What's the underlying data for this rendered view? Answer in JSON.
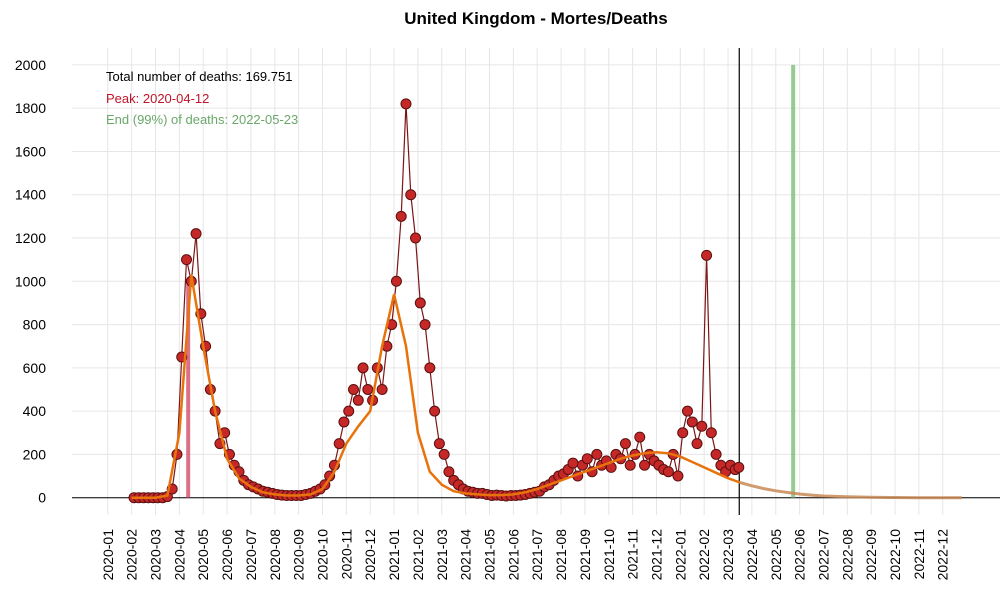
{
  "chart_data": {
    "type": "scatter-fit",
    "title": "United Kingdom - Mortes/Deaths",
    "annotations": {
      "total": "Total number of deaths: 169.751",
      "peak": "Peak: 2020-04-12",
      "end": "End (99%) of deaths: 2022-05-23"
    },
    "peak_line_x": 3.37,
    "end_line_x": 28.73,
    "current_line_x": 26.47,
    "xlim": [
      -1.5,
      37.4
    ],
    "ylim": [
      -80,
      2078
    ],
    "yticks": [
      0,
      200,
      400,
      600,
      800,
      1000,
      1200,
      1400,
      1600,
      1800,
      2000
    ],
    "xticks": [
      {
        "value": 0,
        "label": "2020-01"
      },
      {
        "value": 1,
        "label": "2020-02"
      },
      {
        "value": 2,
        "label": "2020-03"
      },
      {
        "value": 3,
        "label": "2020-04"
      },
      {
        "value": 4,
        "label": "2020-05"
      },
      {
        "value": 5,
        "label": "2020-06"
      },
      {
        "value": 6,
        "label": "2020-07"
      },
      {
        "value": 7,
        "label": "2020-08"
      },
      {
        "value": 8,
        "label": "2020-09"
      },
      {
        "value": 9,
        "label": "2020-10"
      },
      {
        "value": 10,
        "label": "2020-11"
      },
      {
        "value": 11,
        "label": "2020-12"
      },
      {
        "value": 12,
        "label": "2021-01"
      },
      {
        "value": 13,
        "label": "2021-02"
      },
      {
        "value": 14,
        "label": "2021-03"
      },
      {
        "value": 15,
        "label": "2021-04"
      },
      {
        "value": 16,
        "label": "2021-05"
      },
      {
        "value": 17,
        "label": "2021-06"
      },
      {
        "value": 18,
        "label": "2021-07"
      },
      {
        "value": 19,
        "label": "2021-08"
      },
      {
        "value": 20,
        "label": "2021-09"
      },
      {
        "value": 21,
        "label": "2021-10"
      },
      {
        "value": 22,
        "label": "2021-11"
      },
      {
        "value": 23,
        "label": "2021-12"
      },
      {
        "value": 24,
        "label": "2022-01"
      },
      {
        "value": 25,
        "label": "2022-02"
      },
      {
        "value": 26,
        "label": "2022-03"
      },
      {
        "value": 27,
        "label": "2022-04"
      },
      {
        "value": 28,
        "label": "2022-05"
      },
      {
        "value": 29,
        "label": "2022-06"
      },
      {
        "value": 30,
        "label": "2022-07"
      },
      {
        "value": 31,
        "label": "2022-08"
      },
      {
        "value": 32,
        "label": "2022-09"
      },
      {
        "value": 33,
        "label": "2022-10"
      },
      {
        "value": 34,
        "label": "2022-11"
      },
      {
        "value": 35,
        "label": "2022-12"
      }
    ],
    "grid": true,
    "deaths": {
      "color": "#c62828",
      "line_color": "#7a1616",
      "x": [
        1.1,
        1.3,
        1.5,
        1.7,
        1.9,
        2.1,
        2.3,
        2.5,
        2.7,
        2.9,
        3.1,
        3.3,
        3.5,
        3.7,
        3.9,
        4.1,
        4.3,
        4.5,
        4.7,
        4.9,
        5.1,
        5.3,
        5.5,
        5.7,
        5.9,
        6.1,
        6.3,
        6.5,
        6.7,
        6.9,
        7.1,
        7.3,
        7.5,
        7.7,
        7.9,
        8.1,
        8.3,
        8.5,
        8.7,
        8.9,
        9.1,
        9.3,
        9.5,
        9.7,
        9.9,
        10.1,
        10.3,
        10.5,
        10.7,
        10.9,
        11.1,
        11.3,
        11.5,
        11.7,
        11.9,
        12.1,
        12.3,
        12.5,
        12.7,
        12.9,
        13.1,
        13.3,
        13.5,
        13.7,
        13.9,
        14.1,
        14.3,
        14.5,
        14.7,
        14.9,
        15.1,
        15.3,
        15.5,
        15.7,
        15.9,
        16.1,
        16.3,
        16.5,
        16.7,
        16.9,
        17.1,
        17.3,
        17.5,
        17.7,
        17.9,
        18.1,
        18.3,
        18.5,
        18.7,
        18.9,
        19.1,
        19.3,
        19.5,
        19.7,
        19.9,
        20.1,
        20.3,
        20.5,
        20.7,
        20.9,
        21.1,
        21.3,
        21.5,
        21.7,
        21.9,
        22.1,
        22.3,
        22.5,
        22.7,
        22.9,
        23.1,
        23.3,
        23.5,
        23.7,
        23.9,
        24.1,
        24.3,
        24.5,
        24.7,
        24.9,
        25.1,
        25.3,
        25.5,
        25.7,
        25.9,
        26.1,
        26.3,
        26.45
      ],
      "values": [
        0,
        0,
        0,
        0,
        0,
        0,
        0,
        5,
        40,
        200,
        650,
        1100,
        1000,
        1220,
        850,
        700,
        500,
        400,
        250,
        300,
        200,
        150,
        120,
        80,
        60,
        50,
        40,
        30,
        25,
        20,
        15,
        12,
        10,
        10,
        10,
        10,
        15,
        20,
        30,
        40,
        60,
        100,
        150,
        250,
        350,
        400,
        500,
        450,
        600,
        500,
        450,
        600,
        500,
        700,
        800,
        1000,
        1300,
        1820,
        1400,
        1200,
        900,
        800,
        600,
        400,
        250,
        200,
        120,
        80,
        60,
        40,
        30,
        25,
        20,
        20,
        15,
        10,
        12,
        10,
        8,
        10,
        10,
        12,
        15,
        20,
        25,
        30,
        50,
        60,
        80,
        100,
        110,
        130,
        160,
        100,
        150,
        180,
        120,
        200,
        150,
        170,
        140,
        200,
        180,
        250,
        150,
        200,
        280,
        150,
        200,
        170,
        150,
        130,
        120,
        200,
        100,
        300,
        400,
        350,
        250,
        330,
        1120,
        300,
        200,
        150,
        120,
        150,
        130,
        140
      ]
    },
    "fit": {
      "color": "#e8720c",
      "x": [
        1,
        1.5,
        2,
        2.5,
        3,
        3.5,
        4,
        4.5,
        5,
        5.5,
        6,
        6.5,
        7,
        7.5,
        8,
        8.5,
        9,
        9.5,
        10,
        10.5,
        11,
        11.5,
        12,
        12.5,
        13,
        13.5,
        14,
        14.5,
        15,
        15.5,
        16,
        16.5,
        17,
        17.5,
        18,
        18.5,
        19,
        19.5,
        20,
        20.5,
        21,
        21.5,
        22,
        22.5,
        23,
        23.5,
        24,
        24.5,
        25,
        25.5,
        26,
        26.5
      ],
      "values": [
        0,
        0,
        0,
        10,
        300,
        1030,
        700,
        400,
        180,
        90,
        50,
        25,
        15,
        10,
        10,
        15,
        40,
        120,
        250,
        330,
        400,
        700,
        940,
        700,
        300,
        120,
        60,
        30,
        20,
        15,
        12,
        12,
        15,
        25,
        40,
        60,
        80,
        100,
        120,
        140,
        160,
        180,
        195,
        205,
        210,
        205,
        190,
        165,
        140,
        115,
        90,
        70
      ]
    },
    "forecast": {
      "color": "#c88a55",
      "x": [
        26.5,
        27,
        27.5,
        28,
        28.5,
        29,
        29.5,
        30,
        31,
        32,
        33,
        34,
        35,
        35.8
      ],
      "values": [
        70,
        55,
        42,
        32,
        24,
        17,
        12,
        8,
        4,
        2,
        1,
        0,
        0,
        0
      ]
    }
  }
}
